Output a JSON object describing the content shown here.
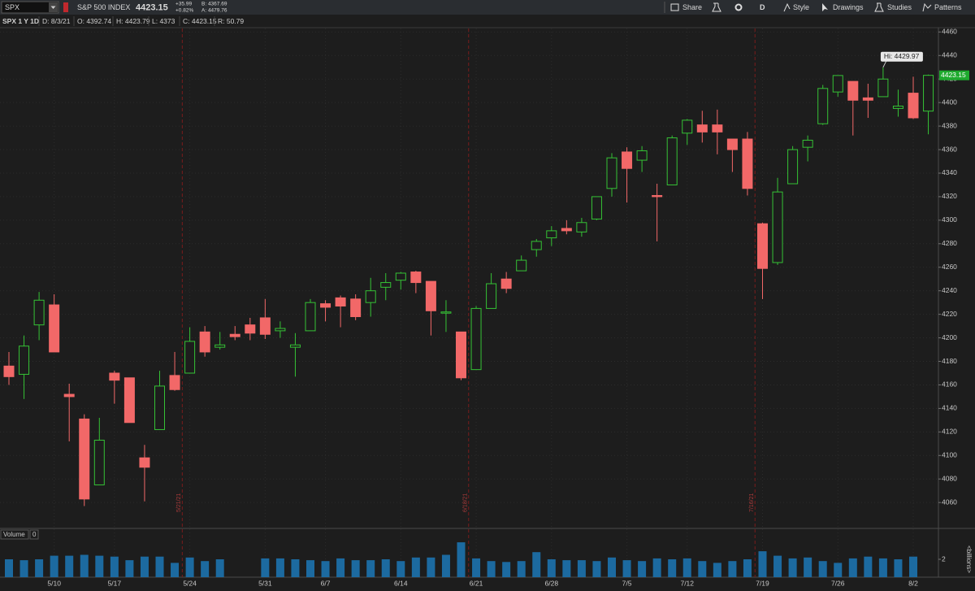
{
  "toolbar": {
    "symbol": "SPX",
    "description": "S&P 500 INDEX",
    "last": "4423.15",
    "change": "+35.99",
    "change_pct": "+0.82%",
    "bid": "B: 4367.69",
    "ask": "A: 4479.76",
    "buttons": [
      "Share",
      "D",
      "Style",
      "Drawings",
      "Studies",
      "Patterns"
    ]
  },
  "info_bar": [
    "SPX 1 Y 1D",
    "D: 8/3/21",
    "O: 4392.74",
    "H: 4423.79",
    "L: 4373",
    "C: 4423.15",
    "R: 50.79"
  ],
  "chart_data": {
    "type": "candlestick",
    "categories": [
      null,
      null,
      null,
      "5/10",
      null,
      null,
      null,
      "5/17",
      null,
      null,
      null,
      null,
      "5/24",
      null,
      null,
      null,
      null,
      "5/31",
      null,
      null,
      null,
      "6/7",
      null,
      null,
      null,
      null,
      "6/14",
      null,
      null,
      null,
      null,
      "6/21",
      null,
      null,
      null,
      null,
      "6/28",
      null,
      null,
      null,
      null,
      "7/5",
      null,
      null,
      null,
      "7/12",
      null,
      null,
      null,
      null,
      "7/19",
      null,
      null,
      null,
      null,
      "7/26",
      null,
      null,
      null,
      null,
      "8/2",
      null
    ],
    "open": [
      4176,
      4169,
      4211,
      4228,
      4152,
      4131,
      4075,
      4170,
      4166,
      4098,
      4122,
      4168,
      4170,
      4205,
      4192,
      4203,
      4211,
      4217,
      4206,
      4192,
      4206,
      4229,
      4234,
      4233,
      4230,
      4243,
      4249,
      4256,
      4248,
      4221,
      4205,
      4173,
      4225,
      4250,
      4257,
      4275,
      4285,
      4293,
      4290,
      4301,
      4327,
      4358,
      4351,
      4321,
      4330,
      4374,
      4381,
      4381,
      4369,
      4369,
      4297,
      4264,
      4331,
      4362,
      4382,
      4409,
      4418,
      4404,
      4405,
      4395,
      4408,
      4392.74
    ],
    "high": [
      4188,
      4202,
      4239,
      4237,
      4161,
      4135,
      4132,
      4172,
      4166,
      4109,
      4172,
      4188,
      4209,
      4210,
      4205,
      4210,
      4217,
      4233,
      4214,
      4204,
      4233,
      4232,
      4236,
      4237,
      4251,
      4255,
      4256,
      4257,
      4248,
      4232,
      4205,
      4227,
      4255,
      4256,
      4270,
      4284,
      4295,
      4300,
      4302,
      4320,
      4357,
      4362,
      4363,
      4331,
      4372,
      4386,
      4393,
      4394,
      4369,
      4375,
      4298,
      4336,
      4363,
      4372,
      4415,
      4423,
      4418,
      4416,
      4429.97,
      4411,
      4422,
      4423.79
    ],
    "low": [
      4160,
      4148,
      4198,
      4188,
      4112,
      4057,
      4075,
      4144,
      4128,
      4061,
      4122,
      4155,
      4170,
      4184,
      4190,
      4198,
      4198,
      4199,
      4200,
      4167,
      4206,
      4214,
      4209,
      4215,
      4218,
      4232,
      4241,
      4238,
      4202,
      4205,
      4164,
      4173,
      4225,
      4238,
      4257,
      4269,
      4278,
      4288,
      4286,
      4300,
      4320,
      4315,
      4341,
      4282,
      4330,
      4364,
      4366,
      4356,
      4341,
      4321,
      4233,
      4262,
      4331,
      4350,
      4381,
      4405,
      4372,
      4387,
      4405,
      4388,
      4386,
      4373
    ],
    "close": [
      4167,
      4193,
      4232,
      4188,
      4150,
      4063,
      4113,
      4164,
      4128,
      4090,
      4159,
      4156,
      4197,
      4188,
      4194,
      4201,
      4204,
      4203,
      4208,
      4194,
      4230,
      4226,
      4227,
      4218,
      4240,
      4247,
      4255,
      4247,
      4223,
      4222,
      4166,
      4225,
      4246,
      4242,
      4266,
      4282,
      4291,
      4291,
      4298,
      4320,
      4353,
      4344,
      4359,
      4320,
      4370,
      4385,
      4375,
      4375,
      4360,
      4327,
      4259,
      4324,
      4360,
      4368,
      4412,
      4423,
      4402,
      4402,
      4420,
      4397,
      4387,
      4423.15
    ],
    "up_color": "#35c235",
    "down_color": "#f26868",
    "ylim": [
      4038,
      4463
    ],
    "yticks": [
      4060,
      4080,
      4100,
      4120,
      4140,
      4160,
      4180,
      4200,
      4220,
      4240,
      4260,
      4280,
      4300,
      4320,
      4340,
      4360,
      4380,
      4400,
      4420,
      4440,
      4460
    ],
    "grid": true,
    "price_tag": "4423.15",
    "hi_label": "Hi: 4429.97",
    "expiration_lines": [
      {
        "label": "5/21/21",
        "index": 11
      },
      {
        "label": "6/18/21",
        "index": 30
      },
      {
        "label": "7/16/21",
        "index": 49
      }
    ],
    "volume": {
      "title": "Volume",
      "count": "0",
      "unit": "<billions>",
      "color": "#1c6aa0",
      "values": [
        2.0,
        1.9,
        2.0,
        2.4,
        2.4,
        2.5,
        2.4,
        2.3,
        1.9,
        2.3,
        2.3,
        1.6,
        2.2,
        1.8,
        2.0,
        null,
        null,
        2.1,
        2.1,
        2.0,
        1.9,
        1.8,
        2.1,
        1.9,
        1.9,
        2.0,
        1.8,
        2.2,
        2.2,
        2.5,
        3.9,
        2.1,
        1.8,
        1.7,
        1.8,
        2.8,
        2.0,
        1.9,
        1.9,
        1.8,
        2.2,
        1.9,
        1.8,
        2.1,
        2.0,
        2.1,
        1.8,
        1.6,
        1.8,
        2.0,
        2.9,
        2.4,
        2.1,
        2.2,
        1.8,
        1.6,
        2.1,
        2.3,
        2.1,
        2.0,
        2.3,
        null
      ],
      "ylim": [
        0,
        4
      ],
      "yticks": [
        2
      ]
    }
  }
}
